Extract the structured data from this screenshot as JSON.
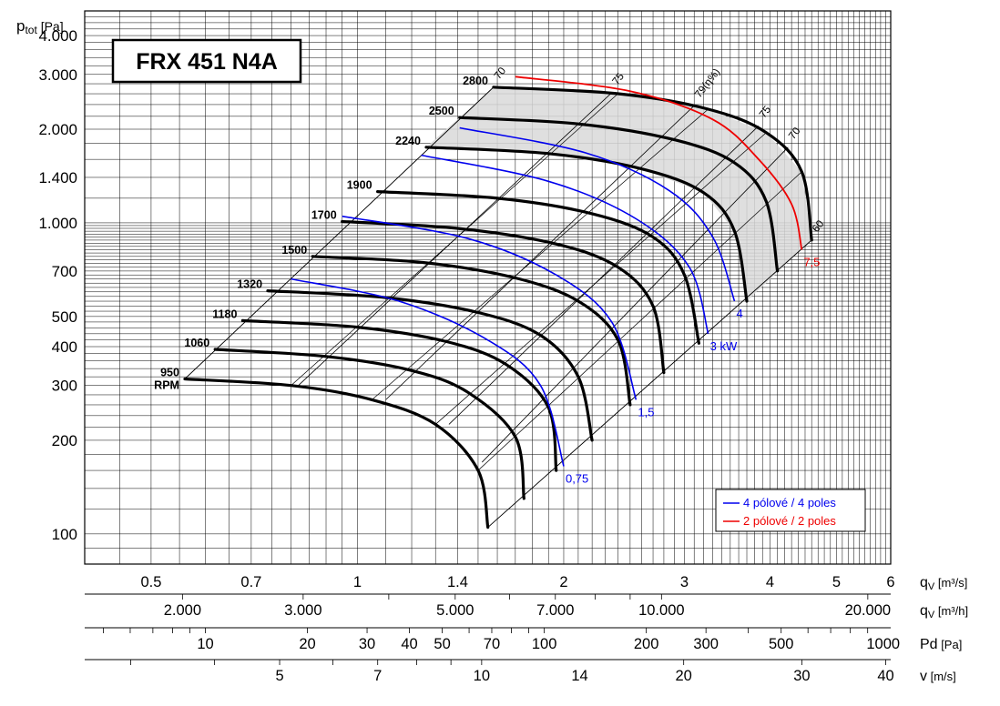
{
  "chart_data": {
    "type": "line",
    "title": "FRX 451 N4A",
    "y_axis": {
      "label_main": "p",
      "label_sub": "tot",
      "label_unit": "[Pa]",
      "scale": "log",
      "ylim": [
        80,
        4800
      ],
      "ticks": [
        {
          "v": 100,
          "label": "100"
        },
        {
          "v": 200,
          "label": "200"
        },
        {
          "v": 300,
          "label": "300"
        },
        {
          "v": 400,
          "label": "400"
        },
        {
          "v": 500,
          "label": "500"
        },
        {
          "v": 700,
          "label": "700"
        },
        {
          "v": 1000,
          "label": "1.000"
        },
        {
          "v": 1400,
          "label": "1.400"
        },
        {
          "v": 2000,
          "label": "2.000"
        },
        {
          "v": 3000,
          "label": "3.000"
        },
        {
          "v": 4000,
          "label": "4.000"
        }
      ]
    },
    "x_axis": {
      "scale": "log",
      "xlim": [
        0.4,
        6
      ],
      "rows": [
        {
          "unit_main": "q",
          "unit_sub": "V",
          "unit_rest": " [m³/s]",
          "ticks": [
            {
              "v": 0.5,
              "label": "0.5"
            },
            {
              "v": 0.7,
              "label": "0.7"
            },
            {
              "v": 1,
              "label": "1"
            },
            {
              "v": 1.4,
              "label": "1.4"
            },
            {
              "v": 2,
              "label": "2"
            },
            {
              "v": 3,
              "label": "3"
            },
            {
              "v": 4,
              "label": "4"
            },
            {
              "v": 5,
              "label": "5"
            },
            {
              "v": 6,
              "label": "6"
            }
          ]
        },
        {
          "unit_main": "q",
          "unit_sub": "V",
          "unit_rest": " [m³/h]",
          "ticks": [
            {
              "v": 2000,
              "label": "2.000"
            },
            {
              "v": 3000,
              "label": "3.000"
            },
            {
              "v": 5000,
              "label": "5.000"
            },
            {
              "v": 7000,
              "label": "7.000"
            },
            {
              "v": 10000,
              "label": "10.000"
            },
            {
              "v": 20000,
              "label": "20.000"
            }
          ]
        },
        {
          "unit_main": "Pd",
          "unit_sub": "",
          "unit_rest": " [Pa]",
          "ticks": [
            {
              "v": 10,
              "label": "10"
            },
            {
              "v": 20,
              "label": "20"
            },
            {
              "v": 30,
              "label": "30"
            },
            {
              "v": 40,
              "label": "40"
            },
            {
              "v": 50,
              "label": "50"
            },
            {
              "v": 70,
              "label": "70"
            },
            {
              "v": 100,
              "label": "100"
            },
            {
              "v": 200,
              "label": "200"
            },
            {
              "v": 300,
              "label": "300"
            },
            {
              "v": 500,
              "label": "500"
            },
            {
              "v": 1000,
              "label": "1000"
            }
          ]
        },
        {
          "unit_main": "v",
          "unit_sub": "",
          "unit_rest": " [m/s]",
          "ticks": [
            {
              "v": 5,
              "label": "5"
            },
            {
              "v": 7,
              "label": "7"
            },
            {
              "v": 10,
              "label": "10"
            },
            {
              "v": 14,
              "label": "14"
            },
            {
              "v": 20,
              "label": "20"
            },
            {
              "v": 30,
              "label": "30"
            },
            {
              "v": 40,
              "label": "40"
            }
          ]
        }
      ]
    },
    "rpm_curves": [
      {
        "label": "950",
        "points": [
          [
            0.56,
            315
          ],
          [
            0.8,
            300
          ],
          [
            1.05,
            270
          ],
          [
            1.3,
            225
          ],
          [
            1.5,
            160
          ],
          [
            1.55,
            105
          ]
        ]
      },
      {
        "label": "1060",
        "points": [
          [
            0.62,
            392
          ],
          [
            0.9,
            372
          ],
          [
            1.2,
            335
          ],
          [
            1.45,
            285
          ],
          [
            1.7,
            205
          ],
          [
            1.75,
            130
          ]
        ]
      },
      {
        "label": "1180",
        "points": [
          [
            0.68,
            485
          ],
          [
            1.0,
            462
          ],
          [
            1.35,
            415
          ],
          [
            1.65,
            350
          ],
          [
            1.9,
            255
          ],
          [
            1.95,
            160
          ]
        ]
      },
      {
        "label": "1320",
        "points": [
          [
            0.74,
            605
          ],
          [
            1.1,
            575
          ],
          [
            1.5,
            515
          ],
          [
            1.85,
            435
          ],
          [
            2.1,
            320
          ],
          [
            2.2,
            200
          ]
        ]
      },
      {
        "label": "1500",
        "points": [
          [
            0.86,
            780
          ],
          [
            1.25,
            745
          ],
          [
            1.7,
            665
          ],
          [
            2.1,
            560
          ],
          [
            2.4,
            420
          ],
          [
            2.5,
            260
          ]
        ]
      },
      {
        "label": "1700",
        "points": [
          [
            0.95,
            1010
          ],
          [
            1.4,
            960
          ],
          [
            1.95,
            855
          ],
          [
            2.4,
            720
          ],
          [
            2.7,
            540
          ],
          [
            2.8,
            330
          ]
        ]
      },
      {
        "label": "1900",
        "points": [
          [
            1.07,
            1260
          ],
          [
            1.6,
            1200
          ],
          [
            2.2,
            1070
          ],
          [
            2.7,
            900
          ],
          [
            3.0,
            680
          ],
          [
            3.15,
            410
          ]
        ]
      },
      {
        "label": "2240",
        "points": [
          [
            1.26,
            1750
          ],
          [
            1.9,
            1670
          ],
          [
            2.6,
            1490
          ],
          [
            3.2,
            1250
          ],
          [
            3.55,
            940
          ],
          [
            3.7,
            560
          ]
        ]
      },
      {
        "label": "2500",
        "points": [
          [
            1.41,
            2180
          ],
          [
            2.1,
            2080
          ],
          [
            2.9,
            1850
          ],
          [
            3.55,
            1560
          ],
          [
            3.95,
            1170
          ],
          [
            4.1,
            700
          ]
        ]
      },
      {
        "label": "2800",
        "points": [
          [
            1.58,
            2730
          ],
          [
            2.4,
            2600
          ],
          [
            3.25,
            2320
          ],
          [
            3.95,
            1950
          ],
          [
            4.45,
            1460
          ],
          [
            4.6,
            880
          ]
        ]
      }
    ],
    "rpm_unit": "RPM",
    "blue_curves": [
      {
        "label": "0,75",
        "points": [
          [
            0.8,
            660
          ],
          [
            1.15,
            560
          ],
          [
            1.55,
            420
          ],
          [
            1.85,
            300
          ],
          [
            2.0,
            165
          ]
        ]
      },
      {
        "label": "1,5",
        "points": [
          [
            0.95,
            1050
          ],
          [
            1.45,
            890
          ],
          [
            1.95,
            680
          ],
          [
            2.35,
            480
          ],
          [
            2.55,
            270
          ]
        ]
      },
      {
        "label": "3 kW",
        "points": [
          [
            1.24,
            1650
          ],
          [
            1.9,
            1360
          ],
          [
            2.55,
            1030
          ],
          [
            3.05,
            720
          ],
          [
            3.25,
            440
          ]
        ]
      },
      {
        "label": "4",
        "points": [
          [
            1.41,
            2020
          ],
          [
            2.15,
            1680
          ],
          [
            2.85,
            1270
          ],
          [
            3.3,
            900
          ],
          [
            3.55,
            560
          ]
        ]
      }
    ],
    "red_curve": {
      "label": "7,5",
      "points": [
        [
          1.7,
          2950
        ],
        [
          2.5,
          2650
        ],
        [
          3.3,
          2150
        ],
        [
          3.85,
          1600
        ],
        [
          4.3,
          1150
        ],
        [
          4.45,
          820
        ]
      ]
    },
    "efficiency_lines": [
      {
        "label": "70",
        "points": [
          [
            1.58,
            2730
          ],
          [
            0.56,
            315
          ]
        ]
      },
      {
        "label": "75",
        "points": [
          [
            2.35,
            2620
          ],
          [
            0.82,
            300
          ]
        ]
      },
      {
        "label": "79(η%)",
        "points": [
          [
            3.1,
            2380
          ],
          [
            1.1,
            270
          ]
        ]
      },
      {
        "label": "75",
        "points": [
          [
            3.85,
            2050
          ],
          [
            1.36,
            225
          ]
        ]
      },
      {
        "label": "70",
        "points": [
          [
            4.25,
            1750
          ],
          [
            1.52,
            170
          ]
        ]
      },
      {
        "label": "60",
        "points": [
          [
            4.6,
            880
          ],
          [
            1.55,
            105
          ]
        ]
      }
    ],
    "legend": {
      "placement": "bottom-right",
      "entries": [
        {
          "label": "4 pólové / 4 poles",
          "color": "#0000ee"
        },
        {
          "label": "2 pólové / 2 poles",
          "color": "#ee0000"
        }
      ]
    },
    "colors": {
      "rpm": "#000000",
      "four_pole": "#0000ee",
      "two_pole": "#ee0000",
      "shade": "#d9d9d9"
    }
  }
}
